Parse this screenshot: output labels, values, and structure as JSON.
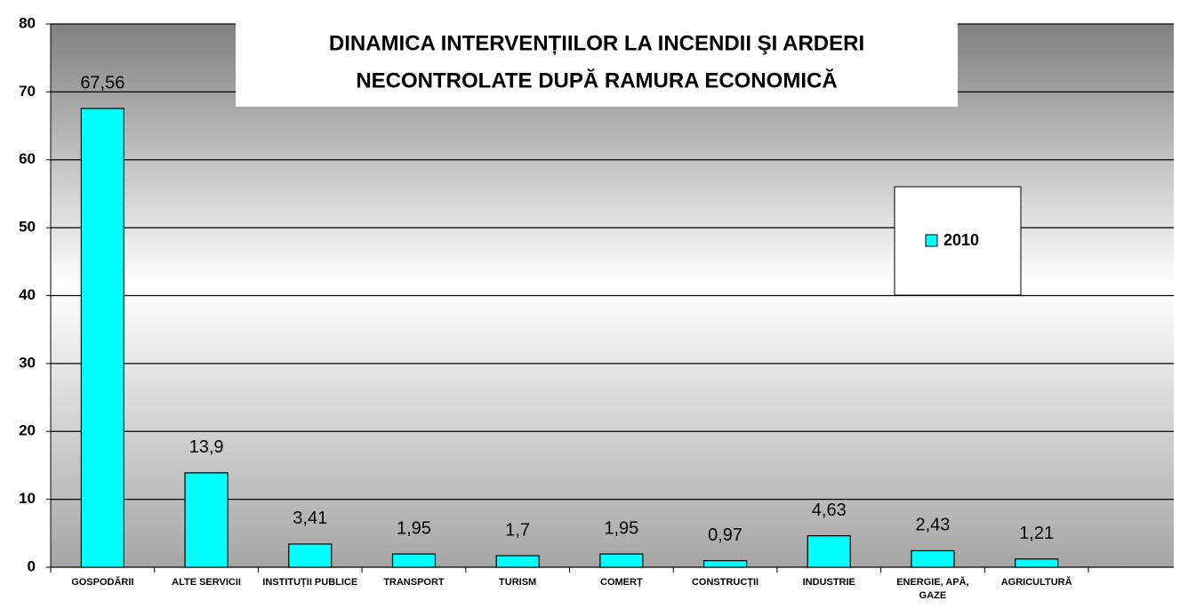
{
  "chart_data": {
    "type": "bar",
    "title": [
      "DINAMICA INTERVENȚIILOR LA INCENDII ŞI ARDERI",
      "NECONTROLATE DUPĂ RAMURA ECONOMICĂ"
    ],
    "categories": [
      "GOSPODĂRII",
      "ALTE SERVICII",
      "INSTITUȚII PUBLICE",
      "TRANSPORT",
      "TURISM",
      "COMERȚ",
      "CONSTRUCȚII",
      "INDUSTRIE",
      "ENERGIE, APĂ, GAZE",
      "AGRICULTURĂ"
    ],
    "series": [
      {
        "name": "2010",
        "color": "#00ffff",
        "values": [
          67.56,
          13.9,
          3.41,
          1.95,
          1.7,
          1.95,
          0.97,
          4.63,
          2.43,
          1.21
        ],
        "value_labels": [
          "67,56",
          "13,9",
          "3,41",
          "1,95",
          "1,7",
          "1,95",
          "0,97",
          "4,63",
          "2,43",
          "1,21"
        ]
      }
    ],
    "ylim": [
      0,
      80
    ],
    "yticks": [
      0,
      10,
      20,
      30,
      40,
      50,
      60,
      70,
      80
    ],
    "grid": true,
    "legend": "right"
  }
}
